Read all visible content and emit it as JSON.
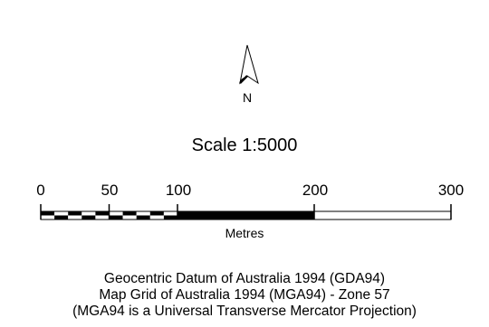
{
  "north_arrow": {
    "label": "N"
  },
  "scale": {
    "title": "Scale  1:5000",
    "ticks": [
      {
        "value": 0,
        "label": "0"
      },
      {
        "value": 50,
        "label": "50"
      },
      {
        "value": 100,
        "label": "100"
      },
      {
        "value": 200,
        "label": "200"
      },
      {
        "value": 300,
        "label": "300"
      }
    ],
    "max": 300,
    "units": "Metres",
    "colors": {
      "fill": "#000000",
      "empty": "#ffffff",
      "stroke": "#000000"
    }
  },
  "datum": {
    "line1": "Geocentric Datum of Australia 1994 (GDA94)",
    "line2": "Map Grid of Australia 1994 (MGA94) - Zone 57",
    "line3": "(MGA94 is a Universal Transverse Mercator Projection)"
  }
}
